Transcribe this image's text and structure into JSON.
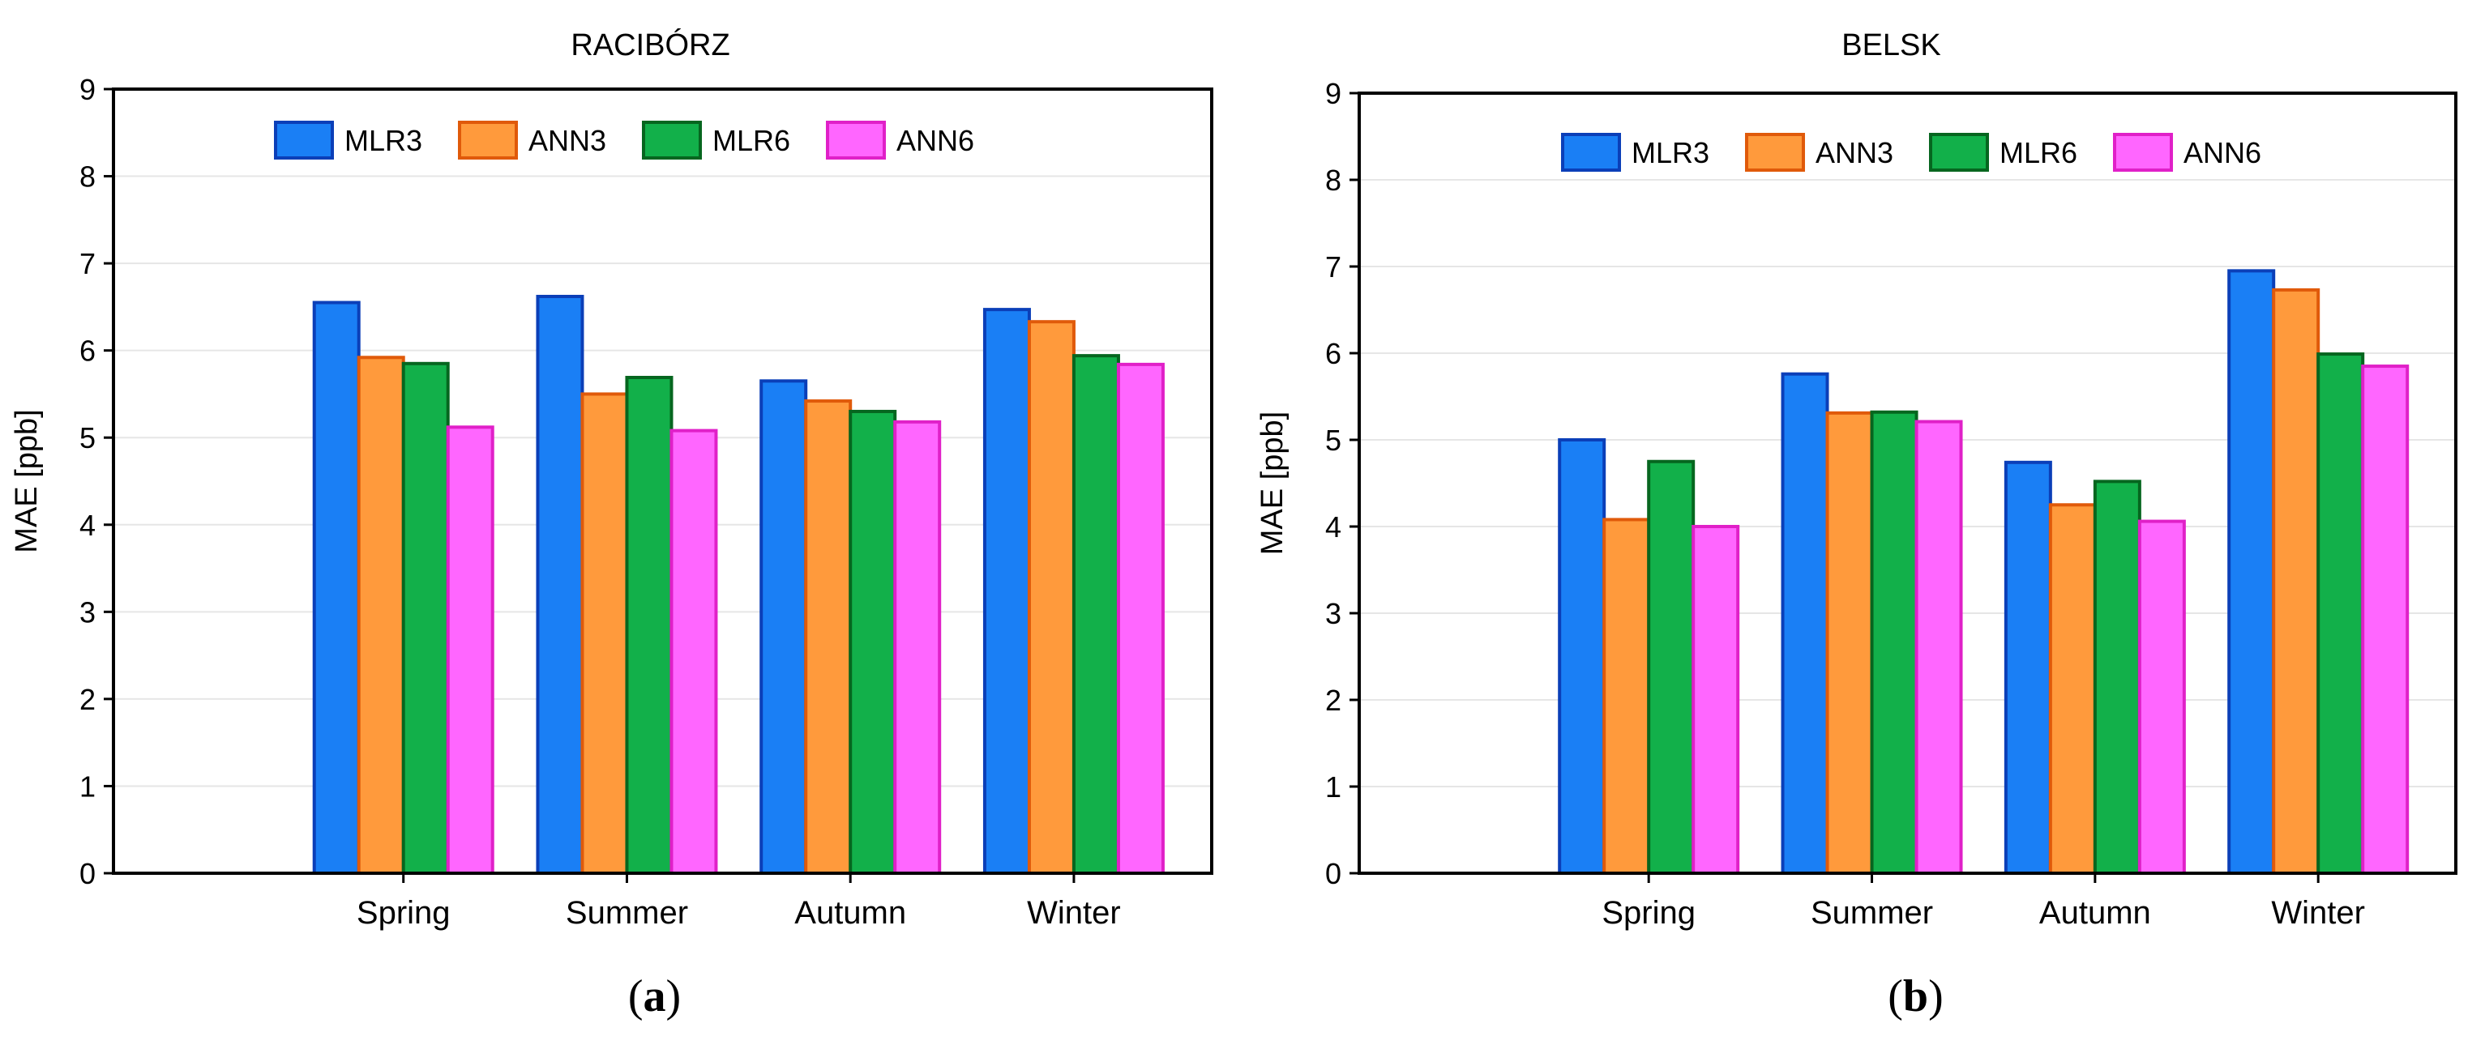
{
  "chart_data": [
    {
      "type": "bar",
      "title": "RACIBÓRZ",
      "caption": "a",
      "xlabel": "",
      "ylabel": "MAE [ppb]",
      "ylim": [
        0,
        9
      ],
      "yticks": [
        0,
        1,
        2,
        3,
        4,
        5,
        6,
        7,
        8,
        9
      ],
      "grid": true,
      "legend_position": "top-center",
      "categories": [
        "Spring",
        "Summer",
        "Autumn",
        "Winter"
      ],
      "series": [
        {
          "name": "MLR3",
          "fill": "#1a7ff5",
          "stroke": "#0b3fb8",
          "values": [
            6.55,
            6.62,
            5.65,
            6.47
          ]
        },
        {
          "name": "ANN3",
          "fill": "#ff9a3c",
          "stroke": "#e05a0a",
          "values": [
            5.92,
            5.5,
            5.42,
            6.33
          ]
        },
        {
          "name": "MLR6",
          "fill": "#12b04a",
          "stroke": "#06661f",
          "values": [
            5.85,
            5.69,
            5.3,
            5.94
          ]
        },
        {
          "name": "ANN6",
          "fill": "#ff66ff",
          "stroke": "#e020c8",
          "values": [
            5.12,
            5.08,
            5.18,
            5.84
          ]
        }
      ]
    },
    {
      "type": "bar",
      "title": "BELSK",
      "caption": "b",
      "xlabel": "",
      "ylabel": "MAE [ppb]",
      "ylim": [
        0,
        9
      ],
      "yticks": [
        0,
        1,
        2,
        3,
        4,
        5,
        6,
        7,
        8,
        9
      ],
      "grid": true,
      "legend_position": "top-center",
      "categories": [
        "Spring",
        "Summer",
        "Autumn",
        "Winter"
      ],
      "series": [
        {
          "name": "MLR3",
          "fill": "#1a7ff5",
          "stroke": "#0b3fb8",
          "values": [
            5.0,
            5.76,
            4.74,
            6.95
          ]
        },
        {
          "name": "ANN3",
          "fill": "#ff9a3c",
          "stroke": "#e05a0a",
          "values": [
            4.08,
            5.31,
            4.25,
            6.73
          ]
        },
        {
          "name": "MLR6",
          "fill": "#12b04a",
          "stroke": "#06661f",
          "values": [
            4.75,
            5.32,
            4.52,
            5.99
          ]
        },
        {
          "name": "ANN6",
          "fill": "#ff66ff",
          "stroke": "#e020c8",
          "values": [
            4.0,
            5.21,
            4.06,
            5.85
          ]
        }
      ]
    }
  ]
}
